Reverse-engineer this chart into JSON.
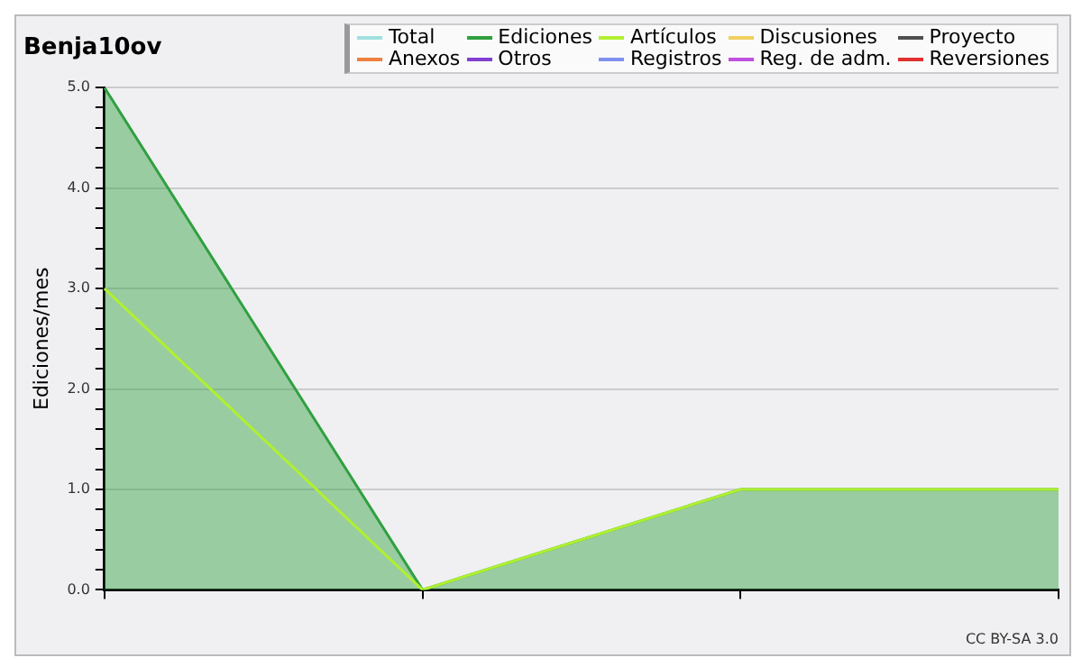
{
  "chart_data": {
    "type": "line",
    "title": "Benja10ov",
    "ylabel": "Ediciones/mes",
    "categories": [
      null,
      null,
      null,
      null
    ],
    "series": [
      {
        "name": "Total",
        "color": "#a0e0e0",
        "values": [
          null,
          null,
          null,
          null
        ]
      },
      {
        "name": "Ediciones",
        "type": "area",
        "color": "#30a040",
        "values": [
          5,
          0,
          1,
          1
        ]
      },
      {
        "name": "Artículos",
        "color": "#b0f030",
        "values": [
          3,
          0,
          1,
          1
        ]
      },
      {
        "name": "Discusiones",
        "color": "#f0d060",
        "values": [
          null,
          null,
          null,
          null
        ]
      },
      {
        "name": "Proyecto",
        "color": "#505050",
        "values": [
          null,
          null,
          null,
          null
        ]
      },
      {
        "name": "Anexos",
        "color": "#f08040",
        "values": [
          null,
          null,
          null,
          null
        ]
      },
      {
        "name": "Otros",
        "color": "#8040d0",
        "values": [
          null,
          null,
          null,
          null
        ]
      },
      {
        "name": "Registros",
        "color": "#8090f0",
        "values": [
          null,
          null,
          null,
          null
        ]
      },
      {
        "name": "Reg. de adm.",
        "color": "#c050e0",
        "values": [
          null,
          null,
          null,
          null
        ]
      },
      {
        "name": "Reversiones",
        "color": "#e03030",
        "values": [
          null,
          null,
          null,
          null
        ]
      }
    ],
    "ylim": [
      0,
      5
    ],
    "yticks": [
      {
        "value": 0,
        "label": "0.0"
      },
      {
        "value": 0.2,
        "label": null
      },
      {
        "value": 0.4,
        "label": null
      },
      {
        "value": 0.6,
        "label": null
      },
      {
        "value": 0.8,
        "label": null
      },
      {
        "value": 1,
        "label": "1.0"
      },
      {
        "value": 1.2,
        "label": null
      },
      {
        "value": 1.4,
        "label": null
      },
      {
        "value": 1.6,
        "label": null
      },
      {
        "value": 1.8,
        "label": null
      },
      {
        "value": 2,
        "label": "2.0"
      },
      {
        "value": 2.2,
        "label": null
      },
      {
        "value": 2.4,
        "label": null
      },
      {
        "value": 2.6,
        "label": null
      },
      {
        "value": 2.8,
        "label": null
      },
      {
        "value": 3,
        "label": "3.0"
      },
      {
        "value": 3.2,
        "label": null
      },
      {
        "value": 3.4,
        "label": null
      },
      {
        "value": 3.6,
        "label": null
      },
      {
        "value": 3.8,
        "label": null
      },
      {
        "value": 4,
        "label": "4.0"
      },
      {
        "value": 4.2,
        "label": null
      },
      {
        "value": 4.4,
        "label": null
      },
      {
        "value": 4.6,
        "label": null
      },
      {
        "value": 4.8,
        "label": null
      },
      {
        "value": 5,
        "label": "5.0"
      }
    ],
    "grid": "y",
    "legend": "top right",
    "marker": "none",
    "line_style": "solid",
    "annotations": [
      "CC BY-SA 3.0"
    ]
  }
}
